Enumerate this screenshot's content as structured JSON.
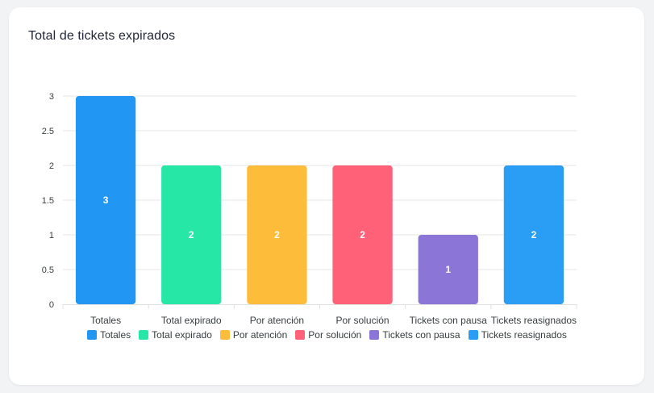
{
  "card": {
    "title": "Total de tickets expirados"
  },
  "chart_data": {
    "type": "bar",
    "title": "Total de tickets expirados",
    "categories": [
      "Totales",
      "Total expirado",
      "Por atención",
      "Por solución",
      "Tickets con pausa",
      "Tickets reasignados"
    ],
    "values": [
      3,
      2,
      2,
      2,
      1,
      2
    ],
    "colors": [
      "#2196F3",
      "#26E7A6",
      "#FEBC3B",
      "#FF6178",
      "#8B75D7",
      "#2A9DF4"
    ],
    "y_ticks": [
      "0",
      "0.5",
      "1",
      "1.5",
      "2",
      "2.5",
      "3"
    ],
    "ylim": [
      0,
      3
    ],
    "xlabel": "",
    "ylabel": "",
    "grid": true,
    "data_labels": true,
    "legend": {
      "position": "bottom",
      "items": [
        "Totales",
        "Total expirado",
        "Por atención",
        "Por solución",
        "Tickets con pausa",
        "Tickets reasignados"
      ]
    }
  }
}
